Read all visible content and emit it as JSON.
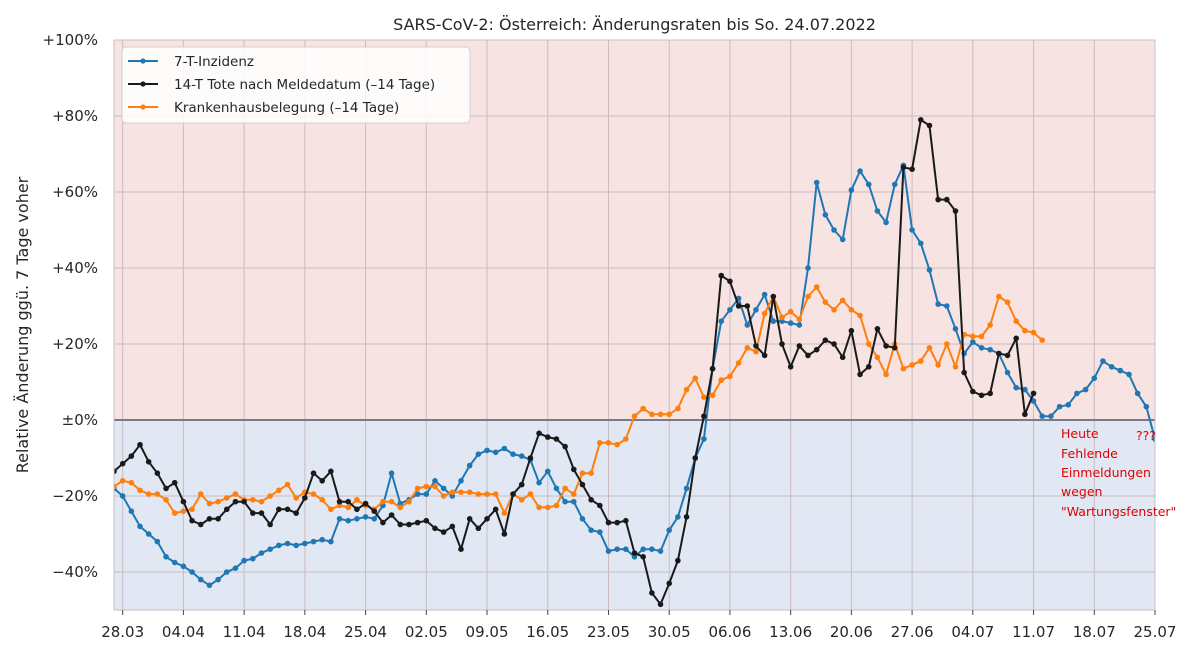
{
  "chart_data": {
    "type": "line",
    "title": "SARS-CoV-2: Österreich: Änderungsraten bis So. 24.07.2022",
    "xlabel": "",
    "ylabel": "Relative Änderung ggü. 7 Tage voher",
    "x_start_date": "27.03.2022",
    "x_end_date": "25.07.2022",
    "xlim_days": [
      0,
      120
    ],
    "ylim": [
      -50,
      100
    ],
    "xtick_labels": [
      "28.03",
      "04.04",
      "11.04",
      "18.04",
      "25.04",
      "02.05",
      "09.05",
      "16.05",
      "23.05",
      "30.05",
      "06.06",
      "13.06",
      "20.06",
      "27.06",
      "04.07",
      "11.07",
      "18.07",
      "25.07"
    ],
    "ytick_values": [
      -40,
      -20,
      0,
      20,
      40,
      60,
      80,
      100
    ],
    "ytick_labels": [
      "−40%",
      "−20%",
      "±0%",
      "+20%",
      "+40%",
      "+60%",
      "+80%",
      "+100%"
    ],
    "legend_position": "upper left",
    "series": [
      {
        "name": "7-T-Inzidenz",
        "color": "#1f77b4",
        "values": [
          -18,
          -20,
          -24,
          -28,
          -30,
          -32,
          -36,
          -37.5,
          -38.5,
          -40,
          -42,
          -43.5,
          -42,
          -40,
          -39,
          -37,
          -36.5,
          -35,
          -34,
          -33,
          -32.5,
          -33,
          -32.5,
          -32,
          -31.5,
          -32,
          -26,
          -26.5,
          -26,
          -25.5,
          -26,
          -22.5,
          -14,
          -22,
          -21,
          -19.5,
          -19.5,
          -16,
          -18,
          -20,
          -16,
          -12,
          -9,
          -8,
          -8.5,
          -7.5,
          -9,
          -9.5,
          -10.5,
          -16.5,
          -13.5,
          -18,
          -21.5,
          -21.5,
          -26,
          -29,
          -29.5,
          -34.5,
          -34,
          -34,
          -36,
          -34,
          -34,
          -34.5,
          -29,
          -25.5,
          -18,
          -10,
          -5,
          13.5,
          26,
          29,
          32,
          25,
          29,
          33,
          26,
          26,
          25.5,
          25,
          40,
          62.5,
          54,
          50,
          47.5,
          60.5,
          65.5,
          62,
          55,
          52,
          62,
          67,
          50,
          46.5,
          39.5,
          30.5,
          30,
          24,
          17.5,
          20.5,
          19,
          18.5,
          17.5,
          12.5,
          8.5,
          8,
          5,
          1,
          1,
          3.5,
          4,
          7,
          8,
          11,
          15.5,
          14,
          13,
          12,
          7,
          3.5,
          -5
        ]
      },
      {
        "name": "14-T Tote nach Meldedatum (–14 Tage)",
        "color": "#1a1a1a",
        "values": [
          -13.5,
          -11.5,
          -9.5,
          -6.5,
          -11,
          -14,
          -18,
          -16.5,
          -21.5,
          -26.5,
          -27.5,
          -26,
          -26,
          -23.5,
          -21.5,
          -21.5,
          -24.5,
          -24.5,
          -27.5,
          -23.5,
          -23.5,
          -24.5,
          -20.5,
          -14,
          -16,
          -13.5,
          -21.5,
          -21.5,
          -23.5,
          -22,
          -24,
          -27,
          -25,
          -27.5,
          -27.5,
          -27,
          -26.5,
          -28.5,
          -29.5,
          -28,
          -34,
          -26,
          -28.5,
          -26,
          -23.5,
          -30,
          -19.5,
          -17,
          -10,
          -3.5,
          -4.5,
          -5,
          -7,
          -13,
          -17,
          -21,
          -22.5,
          -27,
          -27,
          -26.5,
          -35,
          -36,
          -45.5,
          -48.5,
          -43,
          -37,
          -25.5,
          -10,
          1,
          13.5,
          38,
          36.5,
          30,
          30,
          19.5,
          17,
          32.5,
          20,
          14,
          19.5,
          17,
          18.5,
          21,
          20,
          16.5,
          23.5,
          12,
          14,
          24,
          19.5,
          19,
          66.5,
          66,
          79,
          77.5,
          58,
          58,
          55,
          12.5,
          7.5,
          6.5,
          7,
          17.5,
          17,
          21.5,
          1.5,
          7
        ]
      },
      {
        "name": "Krankenhausbelegung (–14 Tage)",
        "color": "#ff7f0e",
        "values": [
          -17.5,
          -16,
          -16.5,
          -18.5,
          -19.5,
          -19.5,
          -21,
          -24.5,
          -24,
          -23.5,
          -19.5,
          -22,
          -21.5,
          -20.5,
          -19.5,
          -21,
          -21,
          -21.5,
          -20,
          -18.5,
          -17,
          -20.5,
          -19,
          -19.5,
          -21,
          -23.5,
          -22.5,
          -23,
          -21,
          -22.5,
          -23.5,
          -21.5,
          -21.5,
          -23,
          -21.5,
          -18,
          -17.5,
          -17.5,
          -20,
          -19,
          -19,
          -19,
          -19.5,
          -19.5,
          -19.5,
          -24.5,
          -19.5,
          -21,
          -19.5,
          -23,
          -23,
          -22.5,
          -18,
          -19.5,
          -14,
          -14,
          -6,
          -6,
          -6.5,
          -5,
          1,
          3,
          1.5,
          1.5,
          1.5,
          3,
          8,
          11,
          6,
          6.5,
          10.5,
          11.5,
          15,
          19,
          18,
          28,
          32.5,
          27,
          28.5,
          26.5,
          32.5,
          35,
          31,
          29,
          31.5,
          29,
          27.5,
          20,
          16.5,
          12,
          20,
          13.5,
          14.5,
          15.5,
          19,
          14.5,
          20,
          14,
          22.5,
          22,
          22,
          25,
          32.5,
          31,
          26,
          23.5,
          23,
          21
        ]
      }
    ],
    "shading": {
      "positive_color": "#f6e3e2",
      "negative_color": "#e1e8f3",
      "zero_line_color": "#7a7a8c"
    },
    "annotations": [
      {
        "text": "???",
        "x_day": 118.5,
        "y": -3.5
      },
      {
        "lines": [
          "Heute",
          "Fehlende",
          "Einmeldungen",
          "wegen",
          "\"Wartungsfenster\""
        ],
        "x_day": 108.5,
        "y": -3.5
      }
    ]
  }
}
